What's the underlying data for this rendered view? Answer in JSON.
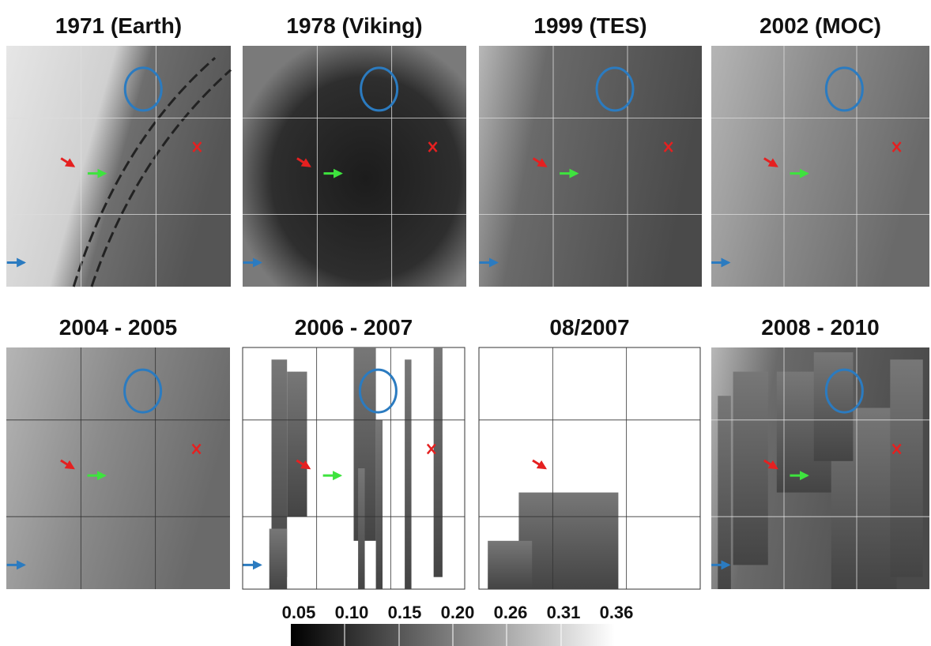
{
  "panels": [
    {
      "title": "1971 (Earth)"
    },
    {
      "title": "1978 (Viking)"
    },
    {
      "title": "1999 (TES)"
    },
    {
      "title": "2002 (MOC)"
    },
    {
      "title": "2004 - 2005"
    },
    {
      "title": "2006 - 2007"
    },
    {
      "title": "08/2007"
    },
    {
      "title": "2008 - 2010"
    }
  ],
  "colorbar": {
    "labels": [
      "0.05",
      "0.10",
      "0.15",
      "0.20",
      "0.26",
      "0.31",
      "0.36"
    ]
  }
}
